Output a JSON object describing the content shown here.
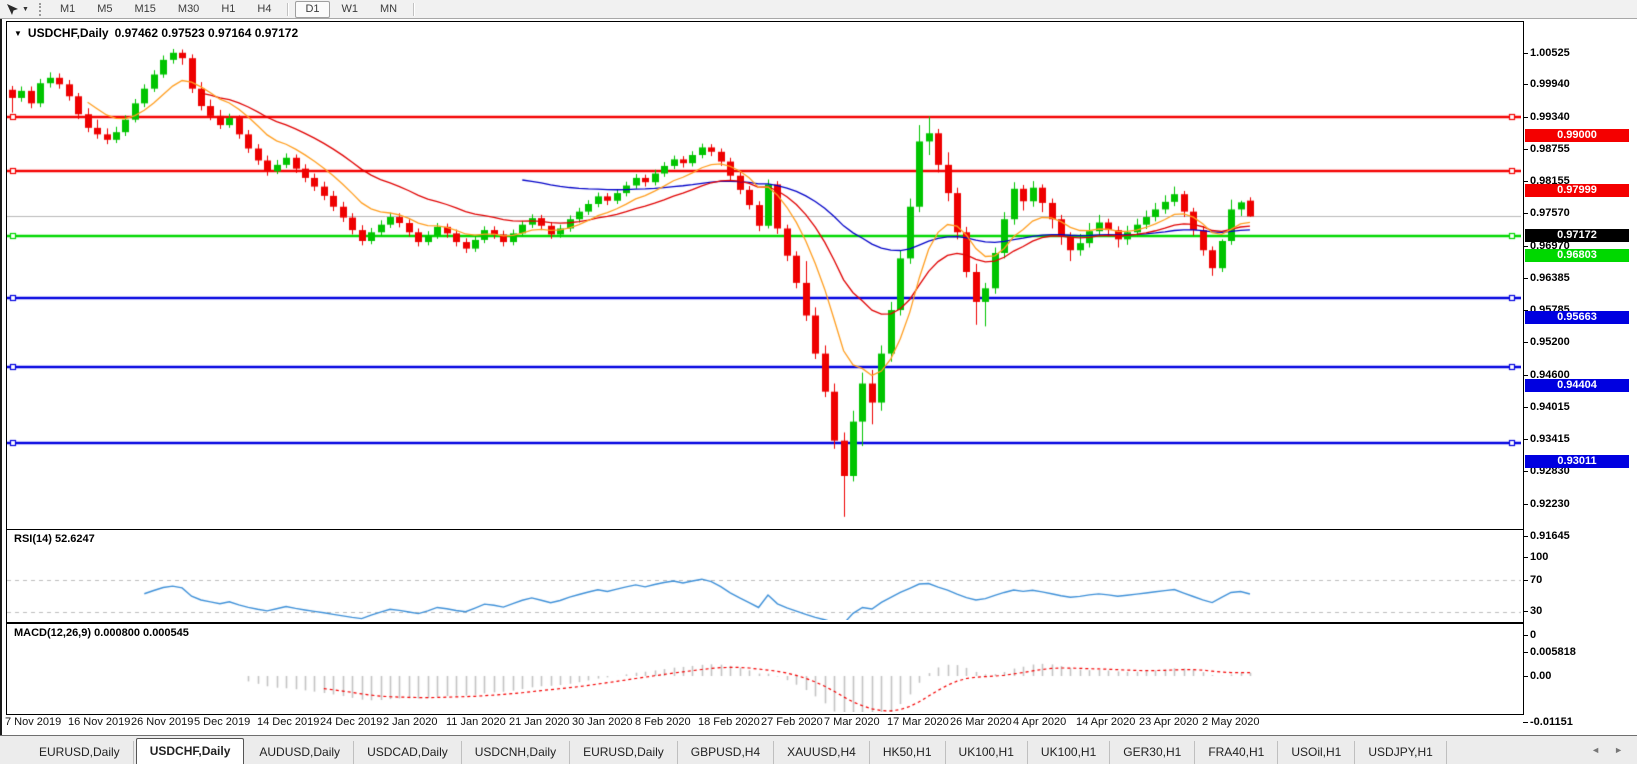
{
  "toolbar": {
    "timeframes": [
      "M1",
      "M5",
      "M15",
      "M30",
      "H1",
      "H4",
      "D1",
      "W1",
      "MN"
    ],
    "active_timeframe": "D1"
  },
  "icons": {
    "collapse_triangle": "▼",
    "dropdown_caret": "▼",
    "scroll_left": "◄",
    "scroll_right": "►"
  },
  "chart": {
    "title": {
      "symbol_period": "USDCHF,Daily",
      "ohlc": "0.97462 0.97523 0.97164 0.97172"
    },
    "price_axis_ticks": [
      "1.00525",
      "0.99940",
      "0.99340",
      "0.98755",
      "0.98155",
      "0.97570",
      "0.96970",
      "0.96385",
      "0.95785",
      "0.95200",
      "0.94600",
      "0.94015",
      "0.93415",
      "0.92830",
      "0.92230",
      "0.91645"
    ],
    "hlines": [
      {
        "price": 0.99,
        "label": "0.99000",
        "color": "#f40000"
      },
      {
        "price": 0.97999,
        "label": "0.97999",
        "color": "#f40000"
      },
      {
        "price": 0.96803,
        "label": "0.96803",
        "color": "#00d800"
      },
      {
        "price": 0.95663,
        "label": "0.95663",
        "color": "#0000e0"
      },
      {
        "price": 0.94404,
        "label": "0.94404",
        "color": "#0000e0"
      },
      {
        "price": 0.93011,
        "label": "0.93011",
        "color": "#0000e0"
      }
    ],
    "current_price": {
      "price": 0.97172,
      "label": "0.97172",
      "line_color": "#b8b8b8",
      "badge_color": "#000000"
    },
    "date_axis": [
      "7 Nov 2019",
      "16 Nov 2019",
      "26 Nov 2019",
      "5 Dec 2019",
      "14 Dec 2019",
      "24 Dec 2019",
      "2 Jan 2020",
      "11 Jan 2020",
      "21 Jan 2020",
      "30 Jan 2020",
      "8 Feb 2020",
      "18 Feb 2020",
      "27 Feb 2020",
      "7 Mar 2020",
      "17 Mar 2020",
      "26 Mar 2020",
      "4 Apr 2020",
      "14 Apr 2020",
      "23 Apr 2020",
      "2 May 2020"
    ]
  },
  "rsi": {
    "label": "RSI(14) 52.6247",
    "axis": [
      "100",
      "70",
      "30",
      "0"
    ],
    "levels": [
      70,
      30
    ],
    "line_color": "#3e90d8"
  },
  "macd": {
    "label": "MACD(12,26,9) 0.000800 0.000545",
    "axis": [
      "0.005818",
      "0.00",
      "-0.01151"
    ],
    "histogram_color": "#c4c4c4",
    "signal_color": "#f40000"
  },
  "tabs": {
    "items": [
      "EURUSD,Daily",
      "USDCHF,Daily",
      "AUDUSD,Daily",
      "USDCAD,Daily",
      "USDCNH,Daily",
      "EURUSD,Daily",
      "GBPUSD,H4",
      "XAUUSD,H4",
      "HK50,H1",
      "UK100,H1",
      "UK100,H1",
      "GER30,H1",
      "FRA40,H1",
      "USOil,H1",
      "USDJPY,H1"
    ],
    "active_index": 1
  },
  "chart_data": {
    "type": "candlestick",
    "symbol": "USDCHF",
    "timeframe": "Daily",
    "colors": {
      "bull": "#00c400",
      "bear": "#ee0000",
      "ma_fast": "#ff9e20",
      "ma_mid": "#e00000",
      "ma_slow": "#0000c8"
    },
    "ma_periods": {
      "fast": 9,
      "mid": 21,
      "slow": 55
    },
    "ohlc": [
      [
        0.995,
        0.9957,
        0.9908,
        0.9935
      ],
      [
        0.9935,
        0.9956,
        0.9928,
        0.9948
      ],
      [
        0.9948,
        0.9956,
        0.9916,
        0.9925
      ],
      [
        0.9925,
        0.997,
        0.9918,
        0.9962
      ],
      [
        0.9962,
        0.9982,
        0.9954,
        0.9972
      ],
      [
        0.9972,
        0.998,
        0.9952,
        0.996
      ],
      [
        0.996,
        0.9968,
        0.993,
        0.9938
      ],
      [
        0.9938,
        0.9944,
        0.9896,
        0.9905
      ],
      [
        0.9905,
        0.9916,
        0.9872,
        0.988
      ],
      [
        0.988,
        0.9895,
        0.986,
        0.9868
      ],
      [
        0.9868,
        0.9879,
        0.985,
        0.9858
      ],
      [
        0.9858,
        0.9882,
        0.9852,
        0.9872
      ],
      [
        0.9872,
        0.9903,
        0.9865,
        0.9895
      ],
      [
        0.9895,
        0.9933,
        0.989,
        0.9925
      ],
      [
        0.9925,
        0.996,
        0.9918,
        0.9952
      ],
      [
        0.9952,
        0.9986,
        0.9946,
        0.9978
      ],
      [
        0.9978,
        1.0013,
        0.9972,
        1.0005
      ],
      [
        1.0005,
        1.0025,
        0.9998,
        1.0018
      ],
      [
        1.0018,
        1.0024,
        0.9996,
        1.0008
      ],
      [
        1.0008,
        1.0015,
        0.9944,
        0.9952
      ],
      [
        0.9952,
        0.9964,
        0.9912,
        0.992
      ],
      [
        0.992,
        0.9932,
        0.9894,
        0.9902
      ],
      [
        0.9902,
        0.9913,
        0.9878,
        0.9885
      ],
      [
        0.9885,
        0.9906,
        0.988,
        0.9898
      ],
      [
        0.9898,
        0.9903,
        0.986,
        0.9868
      ],
      [
        0.9868,
        0.9876,
        0.9834,
        0.9842
      ],
      [
        0.9842,
        0.985,
        0.9812,
        0.982
      ],
      [
        0.982,
        0.9829,
        0.9792,
        0.98
      ],
      [
        0.98,
        0.9821,
        0.9795,
        0.9812
      ],
      [
        0.9812,
        0.9833,
        0.9806,
        0.9825
      ],
      [
        0.9825,
        0.9831,
        0.9797,
        0.9805
      ],
      [
        0.9805,
        0.9813,
        0.978,
        0.9788
      ],
      [
        0.9788,
        0.9796,
        0.9764,
        0.9772
      ],
      [
        0.9772,
        0.9781,
        0.9747,
        0.9755
      ],
      [
        0.9755,
        0.9764,
        0.9727,
        0.9735
      ],
      [
        0.9735,
        0.9744,
        0.9707,
        0.9715
      ],
      [
        0.9715,
        0.9723,
        0.9684,
        0.9692
      ],
      [
        0.9692,
        0.9701,
        0.9664,
        0.9672
      ],
      [
        0.9672,
        0.9696,
        0.9666,
        0.9688
      ],
      [
        0.9688,
        0.971,
        0.9682,
        0.9702
      ],
      [
        0.9702,
        0.9724,
        0.9696,
        0.9716
      ],
      [
        0.9716,
        0.9723,
        0.9697,
        0.9705
      ],
      [
        0.9705,
        0.9712,
        0.968,
        0.9688
      ],
      [
        0.9688,
        0.9695,
        0.9662,
        0.967
      ],
      [
        0.967,
        0.969,
        0.9664,
        0.9682
      ],
      [
        0.9682,
        0.9705,
        0.9676,
        0.9698
      ],
      [
        0.9698,
        0.9704,
        0.9678,
        0.9686
      ],
      [
        0.9686,
        0.9693,
        0.9662,
        0.967
      ],
      [
        0.967,
        0.9677,
        0.965,
        0.9658
      ],
      [
        0.9658,
        0.9681,
        0.9652,
        0.9674
      ],
      [
        0.9674,
        0.9699,
        0.9668,
        0.9692
      ],
      [
        0.9692,
        0.9699,
        0.9676,
        0.9684
      ],
      [
        0.9684,
        0.9691,
        0.9662,
        0.967
      ],
      [
        0.967,
        0.9693,
        0.9664,
        0.9686
      ],
      [
        0.9686,
        0.9709,
        0.968,
        0.9702
      ],
      [
        0.9702,
        0.9721,
        0.9696,
        0.9714
      ],
      [
        0.9714,
        0.972,
        0.9692,
        0.97
      ],
      [
        0.97,
        0.9707,
        0.9676,
        0.9684
      ],
      [
        0.9684,
        0.9702,
        0.9678,
        0.9695
      ],
      [
        0.9695,
        0.9719,
        0.9689,
        0.9712
      ],
      [
        0.9712,
        0.9733,
        0.9706,
        0.9726
      ],
      [
        0.9726,
        0.9747,
        0.972,
        0.974
      ],
      [
        0.974,
        0.9761,
        0.9734,
        0.9754
      ],
      [
        0.9754,
        0.976,
        0.9738,
        0.9746
      ],
      [
        0.9746,
        0.9767,
        0.974,
        0.976
      ],
      [
        0.976,
        0.9781,
        0.9754,
        0.9774
      ],
      [
        0.9774,
        0.9795,
        0.9768,
        0.9788
      ],
      [
        0.9788,
        0.9794,
        0.9772,
        0.978
      ],
      [
        0.978,
        0.9803,
        0.9774,
        0.9796
      ],
      [
        0.9796,
        0.9817,
        0.979,
        0.981
      ],
      [
        0.981,
        0.9829,
        0.9804,
        0.9822
      ],
      [
        0.9822,
        0.9828,
        0.9807,
        0.9815
      ],
      [
        0.9815,
        0.9837,
        0.9809,
        0.983
      ],
      [
        0.983,
        0.9851,
        0.9824,
        0.9844
      ],
      [
        0.9844,
        0.985,
        0.9828,
        0.9836
      ],
      [
        0.9836,
        0.9842,
        0.981,
        0.9818
      ],
      [
        0.9818,
        0.9825,
        0.9784,
        0.9792
      ],
      [
        0.9792,
        0.9799,
        0.9758,
        0.9766
      ],
      [
        0.9766,
        0.9773,
        0.973,
        0.9738
      ],
      [
        0.9738,
        0.9745,
        0.969,
        0.97
      ],
      [
        0.97,
        0.9785,
        0.9695,
        0.9776
      ],
      [
        0.9776,
        0.9782,
        0.9685,
        0.9695
      ],
      [
        0.9695,
        0.9702,
        0.9635,
        0.9645
      ],
      [
        0.9645,
        0.9653,
        0.9585,
        0.9595
      ],
      [
        0.9595,
        0.9635,
        0.9525,
        0.9535
      ],
      [
        0.9535,
        0.955,
        0.9455,
        0.9465
      ],
      [
        0.9465,
        0.948,
        0.9385,
        0.9395
      ],
      [
        0.9395,
        0.941,
        0.929,
        0.9305
      ],
      [
        0.9305,
        0.932,
        0.9165,
        0.924
      ],
      [
        0.924,
        0.936,
        0.923,
        0.934
      ],
      [
        0.934,
        0.943,
        0.9295,
        0.941
      ],
      [
        0.941,
        0.9435,
        0.9335,
        0.9375
      ],
      [
        0.9375,
        0.948,
        0.936,
        0.9465
      ],
      [
        0.9465,
        0.956,
        0.945,
        0.9545
      ],
      [
        0.9545,
        0.9655,
        0.9535,
        0.964
      ],
      [
        0.964,
        0.975,
        0.963,
        0.9735
      ],
      [
        0.9735,
        0.9885,
        0.9725,
        0.9855
      ],
      [
        0.9855,
        0.9901,
        0.983,
        0.987
      ],
      [
        0.987,
        0.9878,
        0.9798,
        0.9812
      ],
      [
        0.9812,
        0.9835,
        0.9745,
        0.976
      ],
      [
        0.976,
        0.977,
        0.9675,
        0.9688
      ],
      [
        0.9688,
        0.9698,
        0.9605,
        0.9615
      ],
      [
        0.9615,
        0.963,
        0.9518,
        0.956
      ],
      [
        0.956,
        0.9595,
        0.9515,
        0.9585
      ],
      [
        0.9585,
        0.966,
        0.9575,
        0.965
      ],
      [
        0.965,
        0.9725,
        0.964,
        0.9712
      ],
      [
        0.9712,
        0.978,
        0.9702,
        0.9768
      ],
      [
        0.9768,
        0.9775,
        0.9728,
        0.9745
      ],
      [
        0.9745,
        0.9782,
        0.9735,
        0.977
      ],
      [
        0.977,
        0.9776,
        0.9725,
        0.9742
      ],
      [
        0.9742,
        0.975,
        0.9695,
        0.9712
      ],
      [
        0.9712,
        0.972,
        0.9665,
        0.968
      ],
      [
        0.968,
        0.9688,
        0.9635,
        0.9655
      ],
      [
        0.9655,
        0.9685,
        0.9645,
        0.9668
      ],
      [
        0.9668,
        0.9705,
        0.966,
        0.969
      ],
      [
        0.969,
        0.972,
        0.9682,
        0.9706
      ],
      [
        0.9706,
        0.9713,
        0.968,
        0.9692
      ],
      [
        0.9692,
        0.9699,
        0.966,
        0.9675
      ],
      [
        0.9675,
        0.97,
        0.9665,
        0.9688
      ],
      [
        0.9688,
        0.9713,
        0.968,
        0.9702
      ],
      [
        0.9702,
        0.9728,
        0.9694,
        0.9716
      ],
      [
        0.9716,
        0.9742,
        0.9708,
        0.973
      ],
      [
        0.973,
        0.9756,
        0.9722,
        0.9744
      ],
      [
        0.9744,
        0.9772,
        0.9736,
        0.9758
      ],
      [
        0.9758,
        0.9764,
        0.9716,
        0.9726
      ],
      [
        0.9726,
        0.9733,
        0.9682,
        0.9692
      ],
      [
        0.9692,
        0.9699,
        0.9645,
        0.9655
      ],
      [
        0.9655,
        0.9662,
        0.9608,
        0.9622
      ],
      [
        0.9622,
        0.9675,
        0.9615,
        0.9672
      ],
      [
        0.9672,
        0.9748,
        0.9665,
        0.973
      ],
      [
        0.973,
        0.9746,
        0.9718,
        0.9743
      ],
      [
        0.97462,
        0.97523,
        0.97164,
        0.97172
      ]
    ]
  }
}
